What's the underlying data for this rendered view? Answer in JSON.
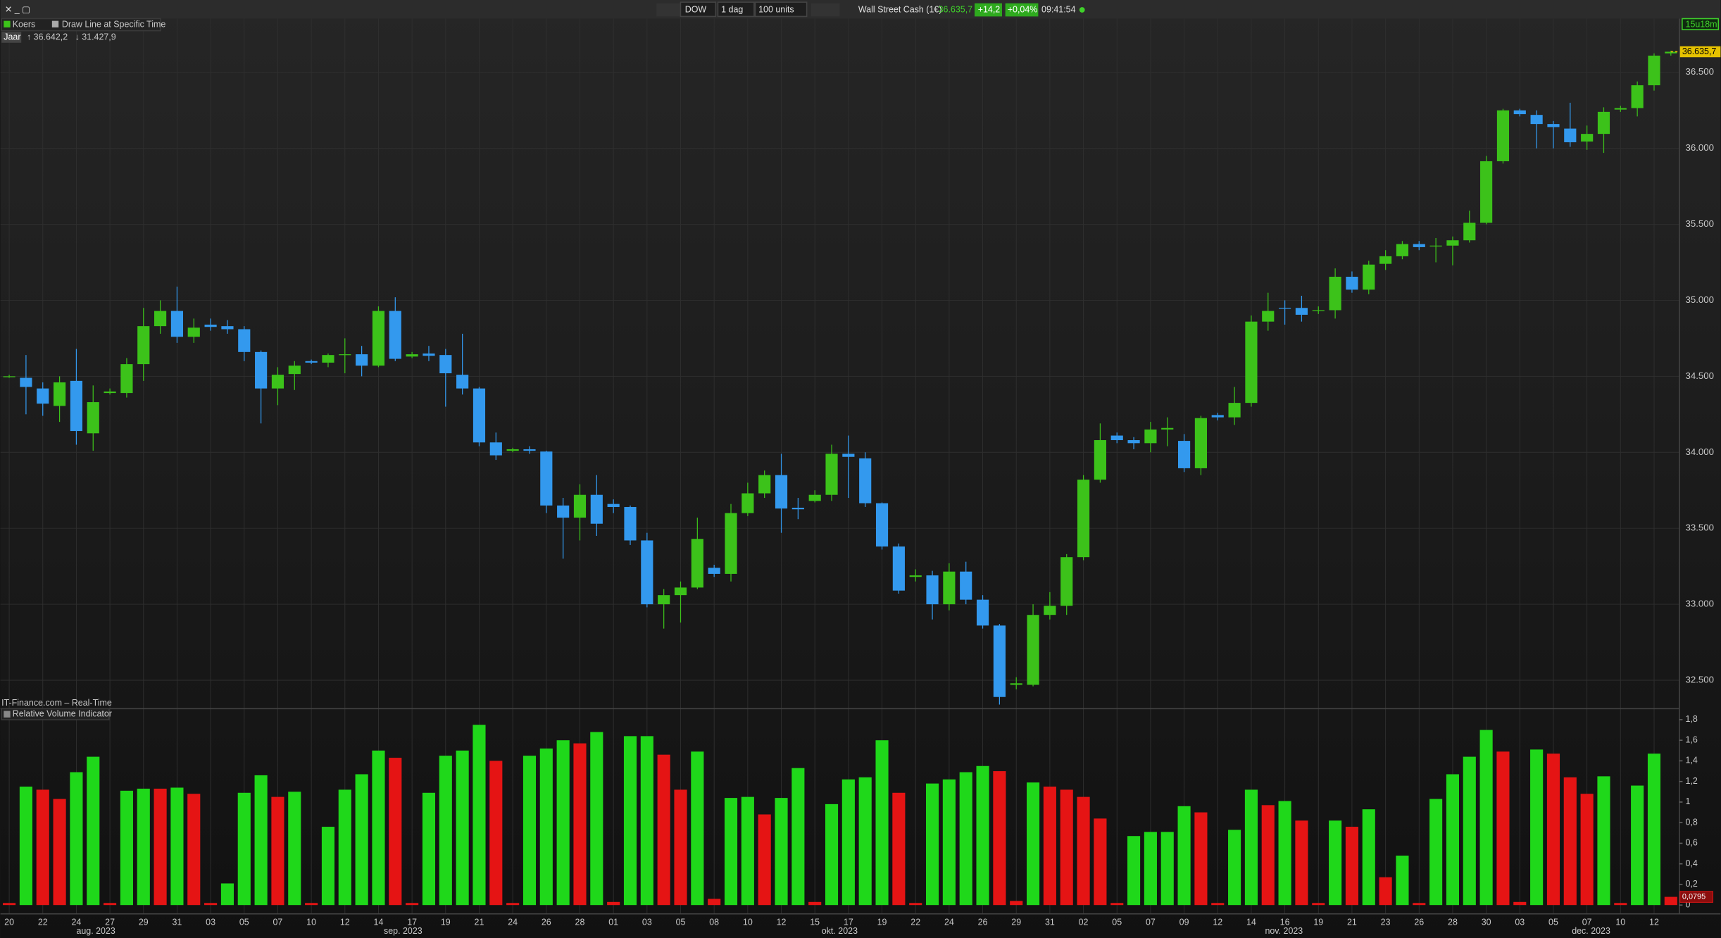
{
  "toolbar": {
    "symbol": "DOW",
    "interval": "1 dag",
    "size": "100 units",
    "instrument": "Wall Street Cash (1€)",
    "price": "36.635,7",
    "change": "+14,2",
    "change_pct": "+0,04%",
    "time": "09:41:54"
  },
  "legend": {
    "series_name": "Koers",
    "drawing": "Draw Line at Specific Time",
    "period": "Jaar",
    "year_high": "↑ 36.642,2",
    "year_low": "↓ 31.427,9",
    "countdown": "15u18m",
    "source": "IT-Finance.com – Real-Time"
  },
  "chart_data": [
    {
      "type": "candlestick",
      "up_color": "#3cc21a",
      "down_color": "#3399ee",
      "grid": true,
      "last_value_label": "36.635,7",
      "categories": [
        "20",
        null,
        "22",
        null,
        "24",
        null,
        "27",
        null,
        "29",
        null,
        "31",
        null,
        "03",
        null,
        "05",
        null,
        "07",
        null,
        "10",
        null,
        "12",
        null,
        "14",
        null,
        "17",
        null,
        "19",
        null,
        "21",
        null,
        "24",
        null,
        "26",
        null,
        "28",
        null,
        "01",
        null,
        "03",
        null,
        "05",
        null,
        "08",
        null,
        "10",
        null,
        "12",
        null,
        "15",
        null,
        "17",
        null,
        "19",
        null,
        "22",
        null,
        "24",
        null,
        "26",
        null,
        "29",
        null,
        "31",
        null,
        "02",
        null,
        "05",
        null,
        "07",
        null,
        "09",
        null,
        "12",
        null,
        "14",
        null,
        "16",
        null,
        "19",
        null,
        "21",
        null,
        "23",
        null,
        "26",
        null,
        "28",
        null,
        "30",
        null,
        "03",
        null,
        "05",
        null,
        "07",
        null,
        "10",
        null,
        "12",
        null
      ],
      "month_labels": [
        "aug. 2023",
        "sep. 2023",
        "okt. 2023",
        "nov. 2023",
        "dec. 2023"
      ],
      "open": [
        34500,
        34490,
        34420,
        34305,
        34470,
        34125,
        34390,
        34390,
        34580,
        34830,
        34930,
        34760,
        34840,
        34830,
        34810,
        34660,
        34420,
        34515,
        34600,
        34590,
        34640,
        34645,
        34570,
        34930,
        34630,
        34650,
        34640,
        34510,
        34420,
        34065,
        34010,
        34020,
        34005,
        33650,
        33570,
        33720,
        33660,
        33640,
        33420,
        33000,
        33060,
        33110,
        33240,
        33200,
        33600,
        33730,
        33850,
        33635,
        33680,
        33720,
        33990,
        33960,
        33665,
        33380,
        33180,
        33190,
        33000,
        33215,
        33030,
        32860,
        32470,
        32470,
        32930,
        32990,
        33310,
        33820,
        34110,
        34080,
        34060,
        34150,
        34075,
        33895,
        34245,
        34230,
        34325,
        34860,
        34950,
        34950,
        34930,
        34935,
        35155,
        35070,
        35240,
        35290,
        35370,
        35355,
        35360,
        35395,
        35510,
        35915,
        36250,
        36220,
        36160,
        36130,
        36045,
        36095,
        36255,
        36265,
        36415,
        36625
      ],
      "high": [
        34510,
        34640,
        34460,
        34500,
        34680,
        34440,
        34420,
        34620,
        34950,
        35000,
        35090,
        34880,
        34880,
        34870,
        34830,
        34670,
        34560,
        34600,
        34610,
        34650,
        34750,
        34700,
        34960,
        35020,
        34660,
        34700,
        34680,
        34780,
        34430,
        34130,
        34030,
        34040,
        34010,
        33700,
        33790,
        33850,
        33690,
        33650,
        33470,
        33100,
        33150,
        33570,
        33260,
        33660,
        33800,
        33880,
        33990,
        33700,
        33750,
        34050,
        34110,
        34000,
        33670,
        33400,
        33230,
        33220,
        33270,
        33280,
        33060,
        32870,
        32520,
        33000,
        33080,
        33330,
        33850,
        34190,
        34130,
        34100,
        34200,
        34230,
        34120,
        34240,
        34260,
        34430,
        34900,
        35050,
        35000,
        35030,
        34960,
        35210,
        35190,
        35260,
        35330,
        35390,
        35390,
        35410,
        35420,
        35590,
        35950,
        36260,
        36260,
        36250,
        36180,
        36300,
        36150,
        36270,
        36280,
        36440,
        36625,
        36642.2
      ],
      "low": [
        34490,
        34250,
        34240,
        34200,
        34050,
        34010,
        34380,
        34360,
        34470,
        34780,
        34720,
        34720,
        34800,
        34780,
        34600,
        34190,
        34310,
        34410,
        34580,
        34560,
        34520,
        34500,
        34560,
        34600,
        34620,
        34600,
        34300,
        34380,
        34040,
        33950,
        34000,
        33990,
        33600,
        33300,
        33420,
        33450,
        33600,
        33390,
        32980,
        32840,
        32880,
        33100,
        33180,
        33150,
        33580,
        33700,
        33470,
        33560,
        33670,
        33680,
        33700,
        33640,
        33360,
        33070,
        33150,
        32900,
        32960,
        33000,
        32840,
        32340,
        32440,
        32460,
        32900,
        32930,
        33290,
        33800,
        34060,
        34020,
        34000,
        34040,
        33870,
        33850,
        34210,
        34180,
        34300,
        34800,
        34840,
        34860,
        34910,
        34880,
        35050,
        35040,
        35200,
        35270,
        35330,
        35250,
        35230,
        35380,
        35500,
        35900,
        36210,
        36000,
        36000,
        36010,
        35990,
        35970,
        36240,
        36210,
        36380,
        36610
      ],
      "close": [
        34500,
        34430,
        34320,
        34460,
        34140,
        34330,
        34400,
        34580,
        34830,
        34930,
        34760,
        34820,
        34825,
        34810,
        34660,
        34420,
        34510,
        34570,
        34590,
        34640,
        34645,
        34570,
        34930,
        34615,
        34645,
        34635,
        34520,
        34420,
        34065,
        33980,
        34020,
        34010,
        33650,
        33570,
        33720,
        33530,
        33640,
        33420,
        33000,
        33060,
        33110,
        33430,
        33200,
        33600,
        33730,
        33850,
        33630,
        33625,
        33720,
        33990,
        33970,
        33665,
        33380,
        33090,
        33190,
        33000,
        33215,
        33030,
        32860,
        32390,
        32480,
        32930,
        32990,
        33310,
        33820,
        34080,
        34080,
        34060,
        34150,
        34160,
        33895,
        34225,
        34230,
        34325,
        34860,
        34930,
        34945,
        34905,
        34935,
        35155,
        35070,
        35235,
        35290,
        35370,
        35350,
        35360,
        35395,
        35510,
        35915,
        36250,
        36225,
        36160,
        36140,
        36040,
        36095,
        36240,
        36265,
        36415,
        36610,
        36635.7
      ],
      "ylim": [
        32320,
        36875
      ],
      "yticks": [
        {
          "value": 32500,
          "label": "32.500"
        },
        {
          "value": 33000,
          "label": "33.000"
        },
        {
          "value": 33500,
          "label": "33.500"
        },
        {
          "value": 34000,
          "label": "34.000"
        },
        {
          "value": 34500,
          "label": "34.500"
        },
        {
          "value": 35000,
          "label": "35.000"
        },
        {
          "value": 35500,
          "label": "35.500"
        },
        {
          "value": 36000,
          "label": "36.000"
        },
        {
          "value": 36500,
          "label": "36.500"
        }
      ]
    },
    {
      "type": "bar",
      "title": "Relative Volume Indicator",
      "grid": false,
      "last_value_label": "0,0795",
      "values": [
        0.02,
        1.15,
        1.12,
        1.03,
        1.29,
        1.44,
        0.02,
        1.11,
        1.13,
        1.13,
        1.14,
        1.08,
        0.02,
        0.21,
        1.09,
        1.26,
        1.05,
        1.1,
        0.02,
        0.76,
        1.12,
        1.27,
        1.5,
        1.43,
        0.02,
        1.09,
        1.45,
        1.5,
        1.75,
        1.4,
        0.02,
        1.45,
        1.52,
        1.6,
        1.57,
        1.68,
        0.03,
        1.64,
        1.64,
        1.46,
        1.12,
        1.49,
        0.06,
        1.04,
        1.05,
        0.88,
        1.04,
        1.33,
        0.03,
        0.98,
        1.22,
        1.24,
        1.6,
        1.09,
        0.02,
        1.18,
        1.22,
        1.29,
        1.35,
        1.3,
        0.04,
        1.19,
        1.15,
        1.12,
        1.05,
        0.84,
        0.02,
        0.67,
        0.71,
        0.71,
        0.96,
        0.9,
        0.02,
        0.73,
        1.12,
        0.97,
        1.01,
        0.82,
        0.02,
        0.82,
        0.76,
        0.93,
        0.27,
        0.48,
        0.02,
        1.03,
        1.27,
        1.44,
        1.7,
        1.49,
        0.03,
        1.51,
        1.47,
        1.24,
        1.08,
        1.25,
        0.02,
        1.16,
        1.47,
        0.0795
      ],
      "colors": [
        "#e51414",
        "#1fd81a",
        "#e51414",
        "#e51414",
        "#1fd81a",
        "#1fd81a",
        "#e51414",
        "#1fd81a",
        "#1fd81a",
        "#e51414",
        "#1fd81a",
        "#e51414",
        "#e51414",
        "#1fd81a",
        "#1fd81a",
        "#1fd81a",
        "#e51414",
        "#1fd81a",
        "#e51414",
        "#1fd81a",
        "#1fd81a",
        "#1fd81a",
        "#1fd81a",
        "#e51414",
        "#e51414",
        "#1fd81a",
        "#1fd81a",
        "#1fd81a",
        "#1fd81a",
        "#e51414",
        "#e51414",
        "#1fd81a",
        "#1fd81a",
        "#1fd81a",
        "#e51414",
        "#1fd81a",
        "#e51414",
        "#1fd81a",
        "#1fd81a",
        "#e51414",
        "#e51414",
        "#1fd81a",
        "#e51414",
        "#1fd81a",
        "#1fd81a",
        "#e51414",
        "#1fd81a",
        "#1fd81a",
        "#e51414",
        "#1fd81a",
        "#1fd81a",
        "#1fd81a",
        "#1fd81a",
        "#e51414",
        "#e51414",
        "#1fd81a",
        "#1fd81a",
        "#1fd81a",
        "#1fd81a",
        "#e51414",
        "#e51414",
        "#1fd81a",
        "#e51414",
        "#e51414",
        "#e51414",
        "#e51414",
        "#e51414",
        "#1fd81a",
        "#1fd81a",
        "#1fd81a",
        "#1fd81a",
        "#e51414",
        "#e51414",
        "#1fd81a",
        "#1fd81a",
        "#e51414",
        "#1fd81a",
        "#e51414",
        "#e51414",
        "#1fd81a",
        "#e51414",
        "#1fd81a",
        "#e51414",
        "#1fd81a",
        "#e51414",
        "#1fd81a",
        "#1fd81a",
        "#1fd81a",
        "#1fd81a",
        "#e51414",
        "#e51414",
        "#1fd81a",
        "#e51414",
        "#e51414",
        "#e51414",
        "#1fd81a",
        "#e51414",
        "#1fd81a",
        "#1fd81a",
        "#e51414"
      ],
      "ylim": [
        -0.075,
        1.885
      ],
      "yticks": [
        0,
        {
          "value": 0.2,
          "label": "0,2"
        },
        {
          "value": 0.4,
          "label": "0,4"
        },
        {
          "value": 0.6,
          "label": "0,6"
        },
        {
          "value": 0.8,
          "label": "0,8"
        },
        1,
        {
          "value": 1.2,
          "label": "1,2"
        },
        {
          "value": 1.4,
          "label": "1,4"
        },
        {
          "value": 1.6,
          "label": "1,6"
        },
        {
          "value": 1.8,
          "label": "1,8"
        }
      ]
    }
  ]
}
